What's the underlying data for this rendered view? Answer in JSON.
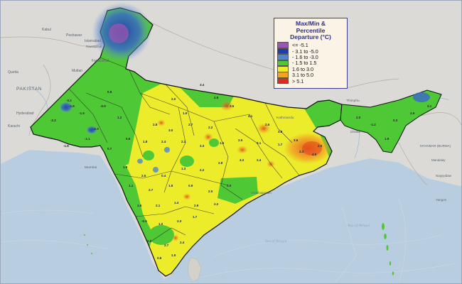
{
  "legend": {
    "title_lines": [
      "Max/Min &",
      "Percentile",
      "Departure (°C)"
    ],
    "items": [
      {
        "label": "<= -5.1",
        "color": "#9b57b0"
      },
      {
        "label": "- 3.1 to -5.0",
        "color": "#1f3ea6"
      },
      {
        "label": "- 1.6 to -3.0",
        "color": "#4f86cf"
      },
      {
        "label": "- 1.5 to 1.5",
        "color": "#4fc836"
      },
      {
        "label": "1.6 to 3.0",
        "color": "#ecec2a"
      },
      {
        "label": "3.1 to 5.0",
        "color": "#f2a327"
      },
      {
        "label": "> 5.1",
        "color": "#e02a1d"
      }
    ]
  },
  "places": {
    "kabul": "Kabul",
    "peshawar": "Peshawar",
    "islamabad": "Islamabad",
    "rawalpindi": "Rawalpindi",
    "faisalabad": "Faisalabad",
    "multan": "Multan",
    "quetta": "Quetta",
    "pakistan": "PAKISTAN",
    "karachi": "Karachi",
    "hyderabad": "Hyderabad",
    "kathmandu": "Kathmandu",
    "thimphu": "Thimphu",
    "dhaka": "Dhaka",
    "myanmar": "MYANMAR (BURMA)",
    "mandalay": "Mandalay",
    "naypyidaw": "Naypyidaw",
    "yangon": "Yangon",
    "mumbai": "Mumbai",
    "visakhapatnam": "Visakhapatnam",
    "bay_label": "Bay of Bengal",
    "sea_label": "Sea of Bengal"
  },
  "values": [
    {
      "t": "-1.8"
    },
    {
      "t": "-2.3"
    },
    {
      "t": "-3.2"
    },
    {
      "t": "-1.5"
    },
    {
      "t": "0.8"
    },
    {
      "t": "-2.2"
    },
    {
      "t": "-1.1"
    },
    {
      "t": "0.6"
    },
    {
      "t": "-1.8"
    },
    {
      "t": "0.7"
    },
    {
      "t": "1.2"
    },
    {
      "t": "-0.9"
    },
    {
      "t": "2.0"
    },
    {
      "t": "3.4"
    },
    {
      "t": "2.9"
    },
    {
      "t": "1.9"
    },
    {
      "t": "3.5"
    },
    {
      "t": "4.1"
    },
    {
      "t": "2.6"
    },
    {
      "t": "3.8"
    },
    {
      "t": "2.8"
    },
    {
      "t": "3.0"
    },
    {
      "t": "2.7"
    },
    {
      "t": "2.2"
    },
    {
      "t": "1.8"
    },
    {
      "t": "2.4"
    },
    {
      "t": "2.1"
    },
    {
      "t": "3.3"
    },
    {
      "t": "1.6"
    },
    {
      "t": "2.5"
    },
    {
      "t": "3.1"
    },
    {
      "t": "1.7"
    },
    {
      "t": "2.3"
    },
    {
      "t": "2.0"
    },
    {
      "t": "3.6"
    },
    {
      "t": "4.5"
    },
    {
      "t": "1.9"
    },
    {
      "t": "2.6"
    },
    {
      "t": "0.4"
    },
    {
      "t": "1.3"
    },
    {
      "t": "2.2"
    },
    {
      "t": "2.8"
    },
    {
      "t": "3.2"
    },
    {
      "t": "2.4"
    },
    {
      "t": "1.1"
    },
    {
      "t": "2.7"
    },
    {
      "t": "1.8"
    },
    {
      "t": "0.9"
    },
    {
      "t": "2.5"
    },
    {
      "t": "3.0"
    },
    {
      "t": "1.6"
    },
    {
      "t": "2.1"
    },
    {
      "t": "1.4"
    },
    {
      "t": "2.9"
    },
    {
      "t": "2.2"
    },
    {
      "t": "-0.5"
    },
    {
      "t": "1.0"
    },
    {
      "t": "2.3"
    },
    {
      "t": "1.7"
    },
    {
      "t": "2.0"
    },
    {
      "t": "2.7"
    },
    {
      "t": "0.8"
    },
    {
      "t": "1.5"
    },
    {
      "t": "2.4"
    },
    {
      "t": "-1.2"
    },
    {
      "t": "0.3"
    },
    {
      "t": "2.6"
    },
    {
      "t": "3.1"
    },
    {
      "t": "1.9"
    },
    {
      "t": "2.0"
    }
  ]
}
